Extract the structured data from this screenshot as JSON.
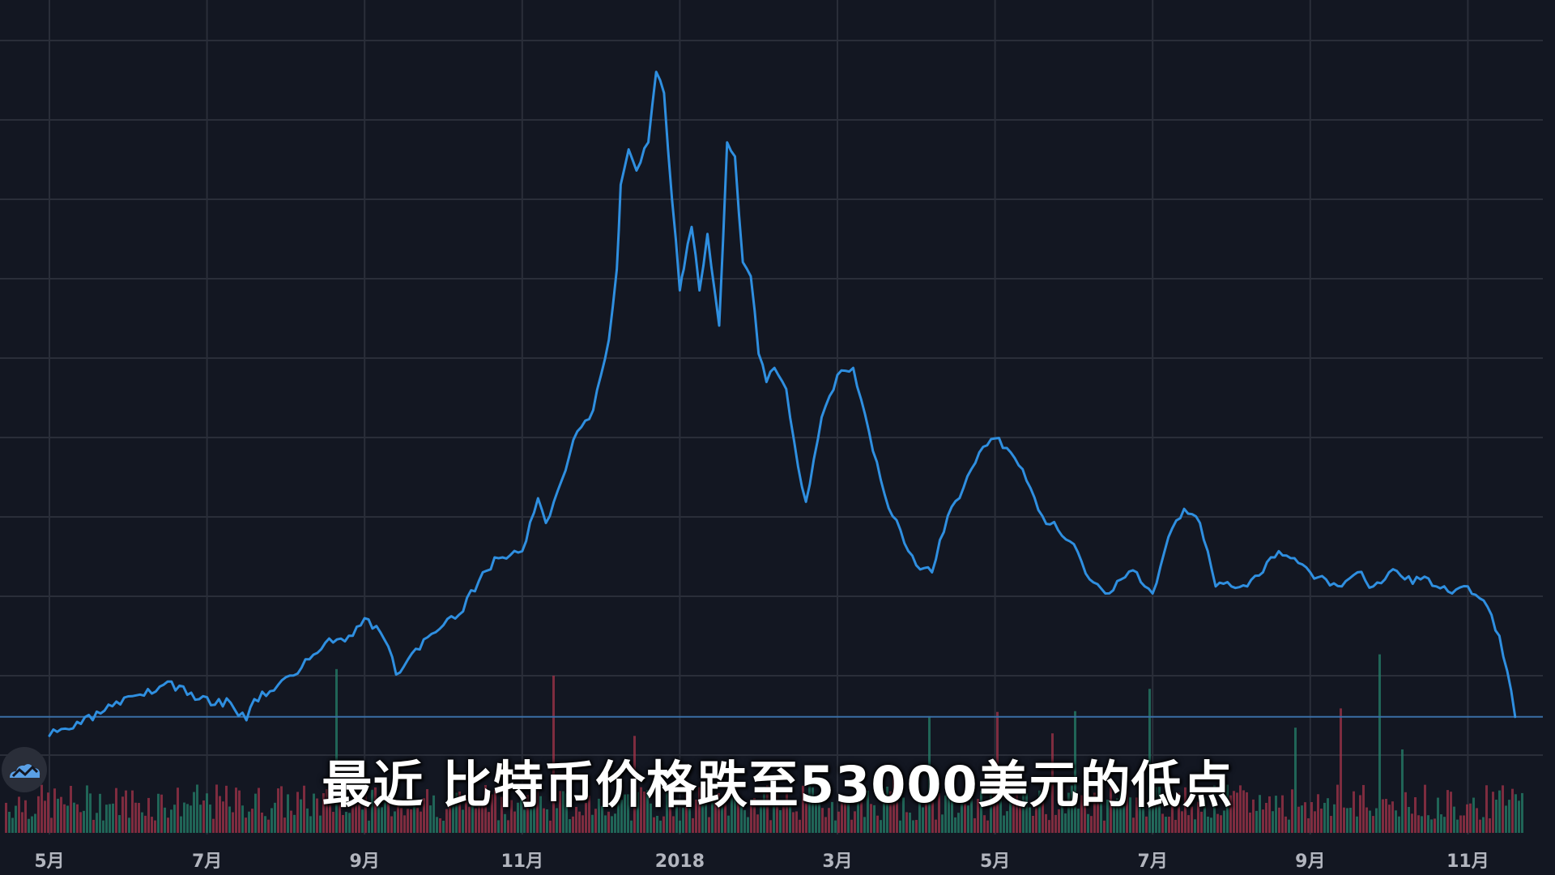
{
  "subtitle": "最近 比特币价格跌至53000美元的低点",
  "logo": {
    "icon": "tradingview-cloud-icon"
  },
  "colors": {
    "background": "#131722",
    "grid": "#2a2e39",
    "line": "#2f8fe0",
    "baseline": "#3a6ea5",
    "volume_up": "#26806a",
    "volume_down": "#a3344a",
    "tick": "#b2b5be"
  },
  "chart_data": {
    "type": "line",
    "title": "",
    "xlabel": "",
    "ylabel": "",
    "grid": true,
    "x_ticks": [
      "5月",
      "7月",
      "9月",
      "11月",
      "2018",
      "3月",
      "5月",
      "7月",
      "9月",
      "11月"
    ],
    "x_tick_months": [
      0,
      2,
      4,
      6,
      8,
      10,
      12,
      14,
      16,
      18
    ],
    "xlim_months": [
      -0.6,
      19.4
    ],
    "ylim_relative": [
      0,
      100
    ],
    "price_series": {
      "name": "",
      "x_months": [
        0.0,
        0.4,
        0.8,
        1.2,
        1.5,
        1.9,
        2.3,
        2.5,
        2.6,
        2.9,
        3.2,
        3.5,
        3.8,
        4.0,
        4.2,
        4.3,
        4.4,
        4.6,
        4.9,
        5.2,
        5.5,
        5.7,
        6.0,
        6.2,
        6.3,
        6.5,
        6.7,
        6.9,
        7.0,
        7.1,
        7.2,
        7.25,
        7.35,
        7.45,
        7.6,
        7.7,
        7.8,
        7.9,
        8.0,
        8.05,
        8.15,
        8.25,
        8.35,
        8.5,
        8.6,
        8.7,
        8.8,
        8.9,
        9.0,
        9.1,
        9.2,
        9.35,
        9.5,
        9.6,
        9.7,
        9.8,
        9.9,
        10.0,
        10.2,
        10.4,
        10.6,
        10.8,
        11.0,
        11.2,
        11.4,
        11.6,
        11.8,
        12.0,
        12.2,
        12.4,
        12.6,
        12.8,
        13.0,
        13.2,
        13.4,
        13.6,
        13.8,
        14.0,
        14.2,
        14.4,
        14.6,
        14.8,
        15.0,
        15.2,
        15.4,
        15.6,
        15.8,
        16.0,
        16.2,
        16.4,
        16.6,
        16.8,
        17.0,
        17.2,
        17.4,
        17.6,
        17.8,
        18.0,
        18.2,
        18.4,
        18.5,
        18.6
      ],
      "relative_values": [
        4.8,
        6.5,
        9.0,
        10.5,
        12.5,
        10.0,
        9.5,
        7.0,
        10.0,
        12.0,
        14.5,
        18.0,
        19.0,
        21.5,
        19.5,
        17.5,
        13.5,
        16.5,
        19.5,
        22.0,
        28.0,
        30.0,
        31.0,
        38.5,
        35.0,
        41.0,
        48.0,
        51.0,
        56.0,
        61.0,
        71.0,
        83.0,
        88.0,
        85.0,
        89.0,
        99.0,
        96.0,
        81.0,
        68.0,
        71.0,
        77.0,
        68.0,
        76.0,
        63.0,
        89.0,
        87.0,
        72.0,
        70.0,
        59.0,
        55.0,
        57.0,
        54.0,
        43.0,
        38.0,
        44.0,
        50.0,
        53.0,
        56.0,
        57.0,
        48.0,
        39.0,
        34.0,
        29.0,
        28.0,
        36.0,
        40.0,
        45.0,
        47.0,
        45.0,
        41.0,
        36.0,
        34.0,
        32.0,
        27.0,
        25.0,
        27.0,
        28.0,
        25.0,
        33.0,
        37.0,
        35.0,
        26.0,
        26.0,
        26.0,
        28.0,
        31.0,
        30.0,
        28.0,
        27.0,
        26.0,
        28.0,
        26.0,
        28.0,
        27.0,
        27.0,
        26.0,
        25.0,
        26.0,
        24.0,
        19.0,
        14.0,
        7.5
      ]
    },
    "baseline_relative": 7.5
  }
}
